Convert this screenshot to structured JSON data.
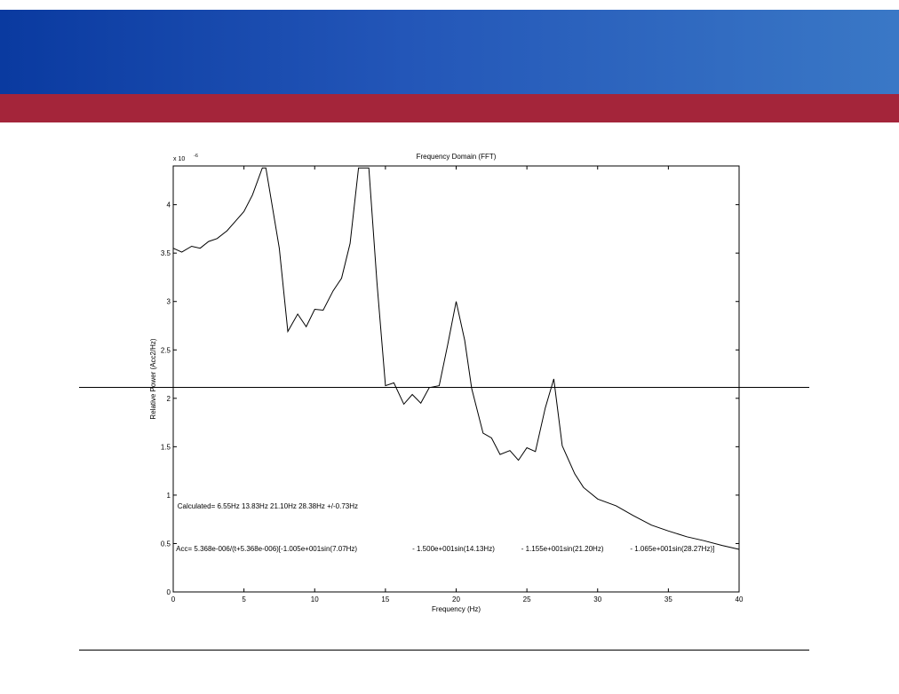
{
  "colors": {
    "banner_blue": "#2356b8",
    "banner_red": "#a4253a",
    "line": "#000000"
  },
  "chart_data": {
    "type": "line",
    "title": "Frequency Domain (FFT)",
    "xlabel": "Frequency (Hz)",
    "ylabel": "Relative Power (Acc2/Hz)",
    "y_exponent_label": "x 10",
    "y_exponent_power": "-6",
    "xlim": [
      0,
      40
    ],
    "ylim": [
      0,
      4.4
    ],
    "y_scale": 1e-06,
    "x_ticks": [
      "0",
      "5",
      "10",
      "15",
      "20",
      "25",
      "30",
      "35",
      "40"
    ],
    "y_ticks": [
      "0",
      "0.5",
      "1",
      "1.5",
      "2",
      "2.5",
      "3",
      "3.5",
      "4"
    ],
    "grid": false,
    "series": [
      {
        "x": [
          0,
          0.6,
          1.3,
          1.9,
          2.5,
          3.1,
          3.8,
          4.4,
          5.0,
          5.6,
          6.3,
          6.55,
          7.5,
          8.1,
          8.8,
          9.4,
          10.0,
          10.6,
          11.3,
          11.9,
          12.5,
          13.1,
          13.83,
          14.4,
          15.0,
          15.6,
          16.3,
          16.9,
          17.5,
          18.1,
          18.8,
          19.4,
          20.0,
          20.6,
          21.1,
          21.9,
          22.5,
          23.1,
          23.8,
          24.4,
          25.0,
          25.6,
          26.3,
          26.9,
          27.5,
          28.38,
          29.0,
          30.0,
          31.3,
          32.5,
          33.8,
          35.0,
          36.3,
          37.5,
          38.8,
          40.0
        ],
        "y": [
          3.55,
          3.51,
          3.57,
          3.55,
          3.62,
          3.65,
          3.73,
          3.83,
          3.93,
          4.1,
          4.38,
          4.38,
          3.55,
          2.69,
          2.87,
          2.74,
          2.92,
          2.91,
          3.11,
          3.24,
          3.6,
          4.38,
          4.38,
          3.2,
          2.13,
          2.16,
          1.94,
          2.04,
          1.95,
          2.11,
          2.13,
          2.55,
          3.0,
          2.6,
          2.1,
          1.64,
          1.59,
          1.42,
          1.46,
          1.36,
          1.49,
          1.45,
          1.9,
          2.2,
          1.51,
          1.22,
          1.08,
          0.96,
          0.89,
          0.79,
          0.69,
          0.63,
          0.57,
          0.53,
          0.48,
          0.44
        ]
      }
    ],
    "annotations": [
      {
        "text": "Calculated= 6.55Hz  13.83Hz  21.10Hz  28.38Hz  +/-0.73Hz",
        "x": 0.3,
        "y": 0.86
      },
      {
        "text": "Acc= 5.368e-006/(t+5.368e-006)[-1.005e+001sin(7.07Hz)",
        "x": 0.2,
        "y": 0.42
      },
      {
        "text": "- 1.500e+001sin(14.13Hz)",
        "x": 16.9,
        "y": 0.42
      },
      {
        "text": "- 1.155e+001sin(21.20Hz)",
        "x": 24.6,
        "y": 0.42
      },
      {
        "text": "- 1.065e+001sin(28.27Hz)]",
        "x": 32.3,
        "y": 0.42
      }
    ]
  }
}
